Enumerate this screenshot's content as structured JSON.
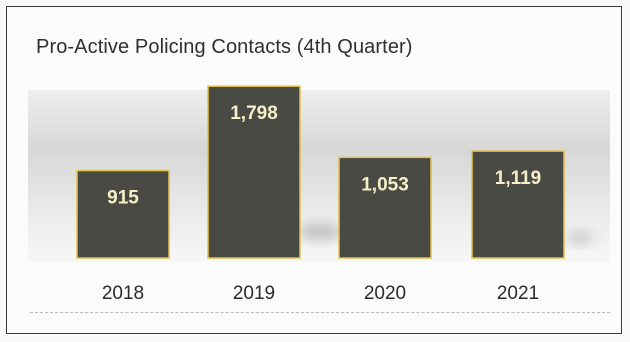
{
  "title": "Pro-Active Policing Contacts (4th Quarter)",
  "colors": {
    "bar_fill": "#4a4a44",
    "bar_edge": "#e3c24a",
    "value_label": "#f6efc8",
    "tick_label": "#2b2b2b"
  },
  "chart_data": {
    "type": "bar",
    "title": "Pro-Active Policing Contacts (4th Quarter)",
    "categories": [
      "2018",
      "2019",
      "2020",
      "2021"
    ],
    "values": [
      915,
      1798,
      1053,
      1119
    ],
    "value_labels": [
      "915",
      "1,798",
      "1,053",
      "1,119"
    ],
    "xlabel": "",
    "ylabel": "",
    "ylim": [
      0,
      1800
    ],
    "grid": false,
    "legend": "none"
  }
}
